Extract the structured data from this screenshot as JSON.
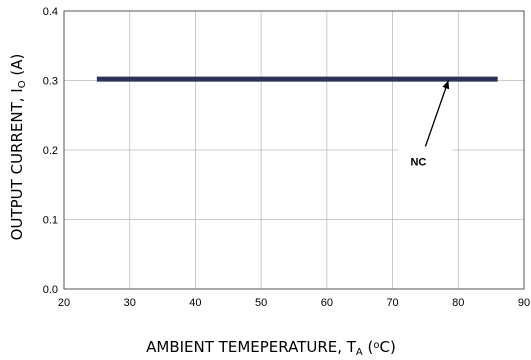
{
  "chart_data": {
    "type": "line",
    "xlabel": "AMBIENT TEMEPERATURE, T",
    "xlabel_sub": "A",
    "xlabel_unit": " (",
    "xlabel_deg": "o",
    "xlabel_end": "C)",
    "ylabel": "OUTPUT CURRENT, I",
    "ylabel_sub": "O",
    "ylabel_unit": " (A)",
    "xlim": [
      20,
      90
    ],
    "ylim": [
      0.0,
      0.4
    ],
    "xticks": [
      "20",
      "30",
      "40",
      "50",
      "60",
      "70",
      "80",
      "90"
    ],
    "yticks": [
      "0.0",
      "0.1",
      "0.2",
      "0.3",
      "0.4"
    ],
    "grid": true,
    "series": [
      {
        "name": "NC",
        "x": [
          25,
          86
        ],
        "y": [
          0.302,
          0.302
        ],
        "color": "#2b3358"
      }
    ],
    "annotation": {
      "text": "NC",
      "arrow_from": [
        75,
        0.205
      ],
      "arrow_to": [
        78.5,
        0.3
      ]
    }
  }
}
